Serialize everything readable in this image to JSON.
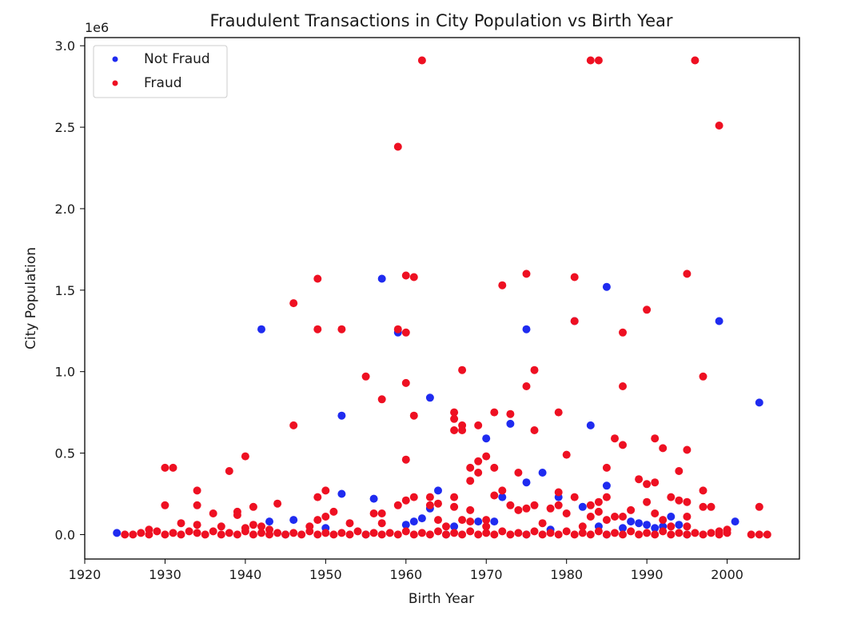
{
  "chart_data": {
    "type": "scatter",
    "title": "Fraudulent Transactions in City Population vs Birth Year",
    "xlabel": "Birth Year",
    "ylabel": "City Population",
    "y_offset_text": "1e6",
    "xlim": [
      1920,
      2009
    ],
    "ylim": [
      -0.15,
      3.05
    ],
    "x_ticks": [
      1920,
      1930,
      1940,
      1950,
      1960,
      1970,
      1980,
      1990,
      2000
    ],
    "x_tick_labels": [
      "1920",
      "1930",
      "1940",
      "1950",
      "1960",
      "1970",
      "1980",
      "1990",
      "2000"
    ],
    "y_ticks": [
      0.0,
      0.5,
      1.0,
      1.5,
      2.0,
      2.5,
      3.0
    ],
    "y_tick_labels": [
      "0.0",
      "0.5",
      "1.0",
      "1.5",
      "2.0",
      "2.5",
      "3.0"
    ],
    "grid": false,
    "legend_position": "top-left",
    "series": [
      {
        "name": "Not Fraud",
        "color": "#1f2bf0",
        "points": [
          [
            1924,
            0.01
          ],
          [
            1943,
            0.08
          ],
          [
            1946,
            0.09
          ],
          [
            1950,
            0.04
          ],
          [
            1952,
            0.25
          ],
          [
            1942,
            1.26
          ],
          [
            1952,
            0.73
          ],
          [
            1956,
            0.22
          ],
          [
            1957,
            1.57
          ],
          [
            1959,
            1.24
          ],
          [
            1961,
            0.08
          ],
          [
            1962,
            0.1
          ],
          [
            1963,
            0.84
          ],
          [
            1964,
            0.27
          ],
          [
            1963,
            0.16
          ],
          [
            1966,
            0.05
          ],
          [
            1969,
            0.08
          ],
          [
            1970,
            0.59
          ],
          [
            1971,
            0.08
          ],
          [
            1972,
            0.23
          ],
          [
            1973,
            0.68
          ],
          [
            1975,
            0.32
          ],
          [
            1975,
            1.26
          ],
          [
            1977,
            0.38
          ],
          [
            1979,
            0.23
          ],
          [
            1981,
            1.31
          ],
          [
            1982,
            0.17
          ],
          [
            1983,
            0.67
          ],
          [
            1984,
            0.05
          ],
          [
            1985,
            0.3
          ],
          [
            1985,
            1.52
          ],
          [
            1987,
            0.04
          ],
          [
            1988,
            0.08
          ],
          [
            1989,
            0.07
          ],
          [
            1990,
            0.06
          ],
          [
            1991,
            0.04
          ],
          [
            1993,
            0.11
          ],
          [
            1994,
            0.06
          ],
          [
            1999,
            1.31
          ],
          [
            2001,
            0.08
          ],
          [
            2004,
            0.81
          ],
          [
            1945,
            0.0
          ],
          [
            1955,
            0.0
          ],
          [
            1965,
            0.0
          ],
          [
            1975,
            0.0
          ],
          [
            1985,
            0.0
          ],
          [
            1995,
            0.0
          ],
          [
            1960,
            0.06
          ],
          [
            1978,
            0.03
          ],
          [
            1992,
            0.05
          ]
        ]
      },
      {
        "name": "Fraud",
        "color": "#ee1022",
        "points": [
          [
            1925,
            0.0
          ],
          [
            1926,
            0.0
          ],
          [
            1927,
            0.01
          ],
          [
            1928,
            0.0
          ],
          [
            1929,
            0.02
          ],
          [
            1930,
            0.0
          ],
          [
            1931,
            0.01
          ],
          [
            1932,
            0.0
          ],
          [
            1933,
            0.02
          ],
          [
            1934,
            0.01
          ],
          [
            1935,
            0.0
          ],
          [
            1936,
            0.02
          ],
          [
            1937,
            0.0
          ],
          [
            1938,
            0.01
          ],
          [
            1939,
            0.0
          ],
          [
            1940,
            0.02
          ],
          [
            1941,
            0.0
          ],
          [
            1942,
            0.01
          ],
          [
            1943,
            0.0
          ],
          [
            1944,
            0.01
          ],
          [
            1945,
            0.0
          ],
          [
            1946,
            0.01
          ],
          [
            1947,
            0.0
          ],
          [
            1948,
            0.02
          ],
          [
            1949,
            0.0
          ],
          [
            1950,
            0.01
          ],
          [
            1951,
            0.0
          ],
          [
            1952,
            0.01
          ],
          [
            1953,
            0.0
          ],
          [
            1954,
            0.02
          ],
          [
            1955,
            0.0
          ],
          [
            1956,
            0.01
          ],
          [
            1957,
            0.0
          ],
          [
            1958,
            0.01
          ],
          [
            1959,
            0.0
          ],
          [
            1960,
            0.02
          ],
          [
            1961,
            0.0
          ],
          [
            1962,
            0.01
          ],
          [
            1963,
            0.0
          ],
          [
            1964,
            0.02
          ],
          [
            1965,
            0.0
          ],
          [
            1966,
            0.01
          ],
          [
            1967,
            0.0
          ],
          [
            1968,
            0.02
          ],
          [
            1969,
            0.0
          ],
          [
            1970,
            0.01
          ],
          [
            1971,
            0.0
          ],
          [
            1972,
            0.02
          ],
          [
            1973,
            0.0
          ],
          [
            1974,
            0.01
          ],
          [
            1975,
            0.0
          ],
          [
            1976,
            0.02
          ],
          [
            1977,
            0.0
          ],
          [
            1978,
            0.01
          ],
          [
            1979,
            0.0
          ],
          [
            1980,
            0.02
          ],
          [
            1981,
            0.0
          ],
          [
            1982,
            0.01
          ],
          [
            1983,
            0.0
          ],
          [
            1984,
            0.02
          ],
          [
            1985,
            0.0
          ],
          [
            1986,
            0.01
          ],
          [
            1987,
            0.0
          ],
          [
            1988,
            0.02
          ],
          [
            1989,
            0.0
          ],
          [
            1990,
            0.01
          ],
          [
            1991,
            0.0
          ],
          [
            1992,
            0.02
          ],
          [
            1993,
            0.0
          ],
          [
            1994,
            0.01
          ],
          [
            1995,
            0.0
          ],
          [
            1996,
            0.01
          ],
          [
            1997,
            0.0
          ],
          [
            1998,
            0.01
          ],
          [
            1999,
            0.0
          ],
          [
            2000,
            0.01
          ],
          [
            2003,
            0.0
          ],
          [
            2004,
            0.0
          ],
          [
            2005,
            0.0
          ],
          [
            1928,
            0.03
          ],
          [
            1930,
            0.18
          ],
          [
            1930,
            0.41
          ],
          [
            1931,
            0.41
          ],
          [
            1932,
            0.07
          ],
          [
            1934,
            0.27
          ],
          [
            1934,
            0.18
          ],
          [
            1934,
            0.06
          ],
          [
            1936,
            0.13
          ],
          [
            1937,
            0.05
          ],
          [
            1938,
            0.39
          ],
          [
            1939,
            0.14
          ],
          [
            1939,
            0.12
          ],
          [
            1940,
            0.48
          ],
          [
            1940,
            0.04
          ],
          [
            1941,
            0.17
          ],
          [
            1941,
            0.06
          ],
          [
            1942,
            0.05
          ],
          [
            1943,
            0.03
          ],
          [
            1944,
            0.19
          ],
          [
            1946,
            0.67
          ],
          [
            1946,
            1.42
          ],
          [
            1948,
            0.05
          ],
          [
            1949,
            1.26
          ],
          [
            1949,
            1.57
          ],
          [
            1949,
            0.23
          ],
          [
            1949,
            0.09
          ],
          [
            1950,
            0.27
          ],
          [
            1950,
            0.11
          ],
          [
            1951,
            0.14
          ],
          [
            1952,
            1.26
          ],
          [
            1953,
            0.07
          ],
          [
            1955,
            0.97
          ],
          [
            1956,
            0.13
          ],
          [
            1957,
            0.83
          ],
          [
            1957,
            0.13
          ],
          [
            1957,
            0.07
          ],
          [
            1959,
            2.38
          ],
          [
            1959,
            1.26
          ],
          [
            1959,
            0.18
          ],
          [
            1960,
            1.24
          ],
          [
            1960,
            1.59
          ],
          [
            1960,
            0.93
          ],
          [
            1960,
            0.46
          ],
          [
            1960,
            0.21
          ],
          [
            1961,
            1.58
          ],
          [
            1961,
            0.73
          ],
          [
            1961,
            0.23
          ],
          [
            1962,
            2.91
          ],
          [
            1963,
            0.23
          ],
          [
            1963,
            0.18
          ],
          [
            1964,
            0.19
          ],
          [
            1964,
            0.09
          ],
          [
            1965,
            0.05
          ],
          [
            1966,
            0.75
          ],
          [
            1966,
            0.71
          ],
          [
            1966,
            0.64
          ],
          [
            1966,
            0.23
          ],
          [
            1966,
            0.17
          ],
          [
            1967,
            1.01
          ],
          [
            1967,
            0.67
          ],
          [
            1967,
            0.64
          ],
          [
            1967,
            0.09
          ],
          [
            1968,
            0.41
          ],
          [
            1968,
            0.33
          ],
          [
            1968,
            0.15
          ],
          [
            1968,
            0.08
          ],
          [
            1969,
            0.67
          ],
          [
            1969,
            0.45
          ],
          [
            1969,
            0.38
          ],
          [
            1970,
            0.48
          ],
          [
            1970,
            0.09
          ],
          [
            1970,
            0.05
          ],
          [
            1971,
            0.75
          ],
          [
            1971,
            0.41
          ],
          [
            1971,
            0.24
          ],
          [
            1972,
            1.53
          ],
          [
            1972,
            0.27
          ],
          [
            1973,
            0.74
          ],
          [
            1973,
            0.18
          ],
          [
            1974,
            0.15
          ],
          [
            1974,
            0.38
          ],
          [
            1975,
            1.6
          ],
          [
            1975,
            0.91
          ],
          [
            1975,
            0.16
          ],
          [
            1976,
            1.01
          ],
          [
            1976,
            0.64
          ],
          [
            1976,
            0.18
          ],
          [
            1977,
            0.07
          ],
          [
            1978,
            0.16
          ],
          [
            1979,
            0.75
          ],
          [
            1979,
            0.26
          ],
          [
            1979,
            0.18
          ],
          [
            1980,
            0.49
          ],
          [
            1980,
            0.13
          ],
          [
            1981,
            1.58
          ],
          [
            1981,
            1.31
          ],
          [
            1981,
            0.23
          ],
          [
            1982,
            0.05
          ],
          [
            1983,
            2.91
          ],
          [
            1983,
            0.18
          ],
          [
            1983,
            0.11
          ],
          [
            1984,
            2.91
          ],
          [
            1984,
            0.2
          ],
          [
            1984,
            0.14
          ],
          [
            1985,
            0.41
          ],
          [
            1985,
            0.23
          ],
          [
            1985,
            0.09
          ],
          [
            1986,
            0.59
          ],
          [
            1986,
            0.11
          ],
          [
            1987,
            1.24
          ],
          [
            1987,
            0.91
          ],
          [
            1987,
            0.55
          ],
          [
            1987,
            0.11
          ],
          [
            1988,
            0.15
          ],
          [
            1989,
            0.34
          ],
          [
            1990,
            1.38
          ],
          [
            1990,
            0.31
          ],
          [
            1990,
            0.2
          ],
          [
            1991,
            0.59
          ],
          [
            1991,
            0.32
          ],
          [
            1991,
            0.13
          ],
          [
            1992,
            0.53
          ],
          [
            1992,
            0.09
          ],
          [
            1993,
            0.23
          ],
          [
            1993,
            0.05
          ],
          [
            1994,
            0.39
          ],
          [
            1994,
            0.21
          ],
          [
            1995,
            1.6
          ],
          [
            1995,
            0.52
          ],
          [
            1995,
            0.2
          ],
          [
            1995,
            0.11
          ],
          [
            1995,
            0.05
          ],
          [
            1996,
            2.91
          ],
          [
            1997,
            0.97
          ],
          [
            1997,
            0.27
          ],
          [
            1997,
            0.17
          ],
          [
            1998,
            0.17
          ],
          [
            1999,
            2.51
          ],
          [
            1999,
            0.02
          ],
          [
            2000,
            0.03
          ],
          [
            2004,
            0.17
          ]
        ]
      }
    ]
  }
}
